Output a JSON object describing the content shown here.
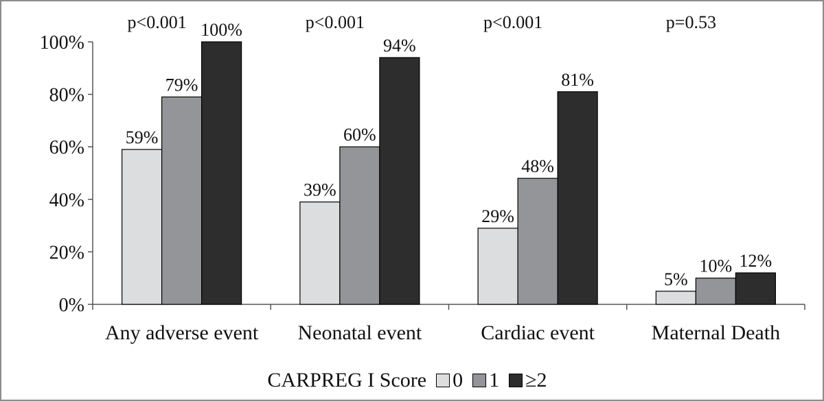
{
  "chart_data": {
    "type": "bar",
    "categories": [
      "Any adverse event",
      "Neonatal event",
      "Cardiac event",
      "Maternal Death"
    ],
    "p_values": [
      "p<0.001",
      "p<0.001",
      "p<0.001",
      "p=0.53"
    ],
    "series": [
      {
        "name": "0",
        "values": [
          59,
          39,
          29,
          5
        ],
        "labels": [
          "59%",
          "39%",
          "29%",
          "5%"
        ],
        "color": "#dcdddf"
      },
      {
        "name": "1",
        "values": [
          79,
          60,
          48,
          10
        ],
        "labels": [
          "79%",
          "60%",
          "48%",
          "10%"
        ],
        "color": "#939598"
      },
      {
        "name": "≥2",
        "values": [
          100,
          94,
          81,
          12
        ],
        "labels": [
          "100%",
          "94%",
          "81%",
          "12%"
        ],
        "color": "#2d2d2d"
      }
    ],
    "ylim": [
      0,
      100
    ],
    "yticks": [
      "0%",
      "20%",
      "40%",
      "60%",
      "80%",
      "100%"
    ],
    "xlabel": "",
    "ylabel": "",
    "legend": {
      "title": "CARPREG I Score",
      "position": "bottom"
    }
  }
}
